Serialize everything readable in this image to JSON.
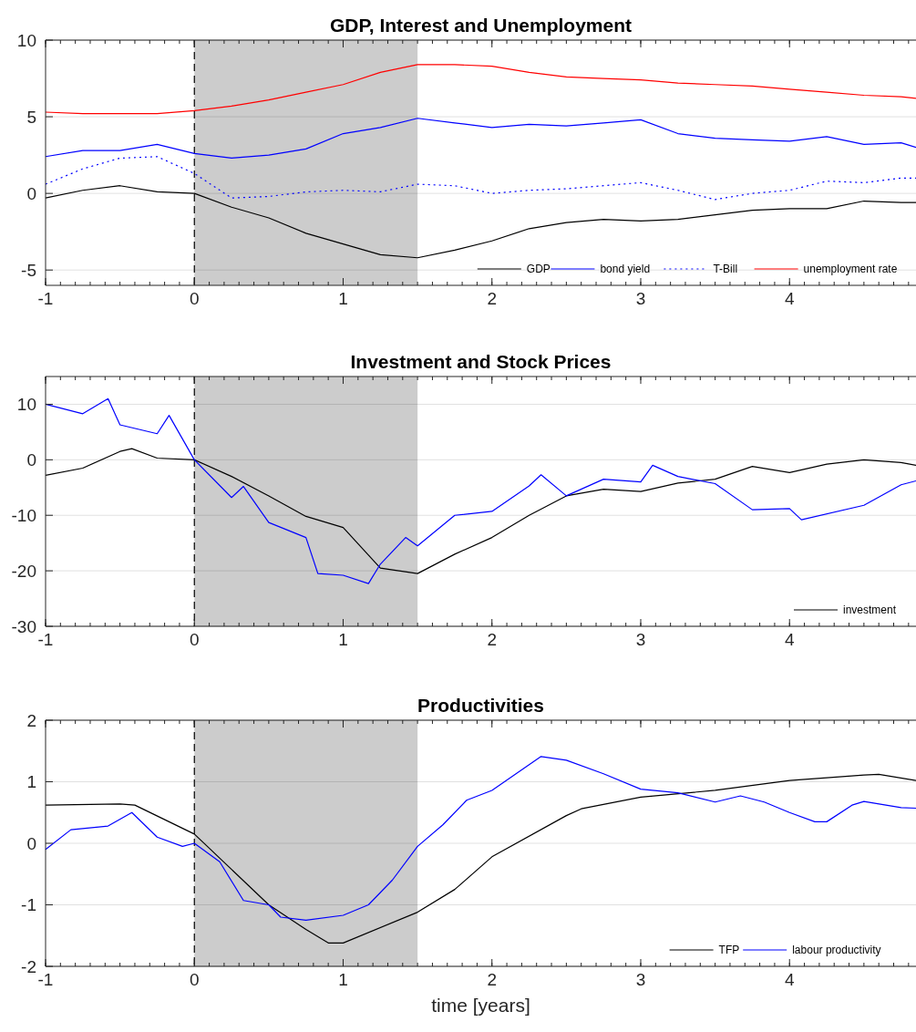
{
  "chart_data": [
    {
      "type": "line",
      "title": "GDP, Interest and Unemployment",
      "xlim": [
        -1,
        4.85
      ],
      "xticks": [
        -1,
        0,
        1,
        2,
        3,
        4
      ],
      "ylim": [
        -6,
        10
      ],
      "yticks": [
        -5,
        0,
        5,
        10
      ],
      "grid": "y",
      "legend": "bottom right",
      "x": [
        -1,
        -0.75,
        -0.5,
        -0.25,
        0,
        0.25,
        0.5,
        0.75,
        1,
        1.25,
        1.5,
        1.75,
        2,
        2.25,
        2.5,
        2.75,
        3,
        3.25,
        3.5,
        3.75,
        4,
        4.25,
        4.5,
        4.75,
        4.85
      ],
      "bands": [
        {
          "axis": "x",
          "from": 0,
          "to": 1.5,
          "color": "#cccccc"
        }
      ],
      "ref_lines": [
        {
          "axis": "x",
          "value": 0,
          "color": "#000000",
          "line_style": "dashed"
        }
      ],
      "series": [
        {
          "name": "GDP",
          "color": "#000000",
          "values": [
            -0.3,
            0.2,
            0.5,
            0.1,
            0.0,
            -0.9,
            -1.6,
            -2.6,
            -3.3,
            -4.0,
            -4.2,
            -3.7,
            -3.1,
            -2.3,
            -1.9,
            -1.7,
            -1.8,
            -1.7,
            -1.4,
            -1.1,
            -1.0,
            -1.0,
            -0.5,
            -0.6,
            -0.6
          ]
        },
        {
          "name": "bond yield",
          "color": "#0000ff",
          "values": [
            2.4,
            2.8,
            2.8,
            3.2,
            2.6,
            2.3,
            2.5,
            2.9,
            3.9,
            4.3,
            4.9,
            4.6,
            4.3,
            4.5,
            4.4,
            4.6,
            4.8,
            3.9,
            3.6,
            3.5,
            3.4,
            3.7,
            3.2,
            3.3,
            3.0
          ]
        },
        {
          "name": "T-Bill",
          "color": "#0000ff",
          "line_style": "dotted",
          "values": [
            0.6,
            1.6,
            2.3,
            2.4,
            1.3,
            -0.3,
            -0.2,
            0.1,
            0.2,
            0.1,
            0.6,
            0.5,
            0.0,
            0.2,
            0.3,
            0.5,
            0.7,
            0.2,
            -0.4,
            0.0,
            0.2,
            0.8,
            0.7,
            1.0,
            1.0
          ]
        },
        {
          "name": "unemployment rate",
          "color": "#ff0000",
          "values": [
            5.3,
            5.2,
            5.2,
            5.2,
            5.4,
            5.7,
            6.1,
            6.6,
            7.1,
            7.9,
            8.4,
            8.4,
            8.3,
            7.9,
            7.6,
            7.5,
            7.4,
            7.2,
            7.1,
            7.0,
            6.8,
            6.6,
            6.4,
            6.3,
            6.2
          ]
        }
      ]
    },
    {
      "type": "line",
      "title": "Investment and Stock Prices",
      "xlim": [
        -1,
        4.85
      ],
      "xticks": [
        -1,
        0,
        1,
        2,
        3,
        4
      ],
      "ylim": [
        -30,
        15
      ],
      "yticks": [
        -30,
        -20,
        -10,
        0,
        10
      ],
      "grid": "y",
      "legend": "bottom right",
      "bands": [
        {
          "axis": "x",
          "from": 0,
          "to": 1.5,
          "color": "#cccccc"
        }
      ],
      "ref_lines": [
        {
          "axis": "x",
          "value": 0,
          "color": "#000000",
          "line_style": "dashed"
        }
      ],
      "series": [
        {
          "name": "investment",
          "color": "#000000",
          "x": [
            -1,
            -0.75,
            -0.5,
            -0.42,
            -0.25,
            0,
            0.25,
            0.5,
            0.75,
            1,
            1.25,
            1.5,
            1.75,
            2,
            2.25,
            2.5,
            2.75,
            3,
            3.25,
            3.5,
            3.75,
            4,
            4.25,
            4.5,
            4.75,
            4.85
          ],
          "values": [
            -2.8,
            -1.5,
            1.5,
            2.0,
            0.3,
            0,
            -3,
            -6.5,
            -10.2,
            -12.2,
            -19.5,
            -20.5,
            -17,
            -14,
            -10,
            -6.5,
            -5.3,
            -5.7,
            -4.2,
            -3.5,
            -1.2,
            -2.3,
            -0.8,
            0,
            -0.5,
            -1.0
          ]
        },
        {
          "color": "#0000ff",
          "x": [
            -1,
            -0.75,
            -0.58,
            -0.5,
            -0.25,
            -0.17,
            0,
            0.25,
            0.33,
            0.5,
            0.75,
            0.83,
            1,
            1.17,
            1.25,
            1.42,
            1.5,
            1.75,
            2,
            2.25,
            2.33,
            2.5,
            2.75,
            3,
            3.08,
            3.25,
            3.5,
            3.75,
            4,
            4.08,
            4.5,
            4.75,
            4.85
          ],
          "values": [
            10,
            8.3,
            11,
            6.3,
            4.7,
            8,
            0,
            -6.8,
            -4.8,
            -11.3,
            -14,
            -20.5,
            -20.8,
            -22.3,
            -18.8,
            -14,
            -15.5,
            -10,
            -9.3,
            -4.7,
            -2.7,
            -6.5,
            -3.5,
            -4,
            -1,
            -3,
            -4.3,
            -9,
            -8.8,
            -10.8,
            -8.2,
            -4.5,
            -3.8
          ]
        }
      ]
    },
    {
      "type": "line",
      "title": "Productivities",
      "xlabel": "time [years]",
      "xlim": [
        -1,
        4.85
      ],
      "xticks": [
        -1,
        0,
        1,
        2,
        3,
        4
      ],
      "ylim": [
        -2,
        2
      ],
      "yticks": [
        -2,
        -1,
        0,
        1,
        2
      ],
      "grid": "y",
      "legend": "bottom right",
      "bands": [
        {
          "axis": "x",
          "from": 0,
          "to": 1.5,
          "color": "#cccccc"
        }
      ],
      "ref_lines": [
        {
          "axis": "x",
          "value": 0,
          "color": "#000000",
          "line_style": "dashed"
        }
      ],
      "series": [
        {
          "name": "TFP",
          "color": "#000000",
          "x": [
            -1,
            -0.5,
            -0.4,
            0,
            0.5,
            0.75,
            0.9,
            1,
            1.5,
            1.75,
            2,
            2.5,
            2.6,
            3,
            3.5,
            4,
            4.5,
            4.6,
            4.85
          ],
          "values": [
            0.62,
            0.64,
            0.62,
            0.15,
            -1.0,
            -1.4,
            -1.62,
            -1.62,
            -1.12,
            -0.75,
            -0.22,
            0.45,
            0.56,
            0.75,
            0.86,
            1.02,
            1.11,
            1.12,
            1.02
          ]
        },
        {
          "name": "labour productivity",
          "color": "#0000ff",
          "x": [
            -1,
            -0.83,
            -0.58,
            -0.42,
            -0.25,
            -0.08,
            0,
            0.17,
            0.33,
            0.5,
            0.58,
            0.75,
            1,
            1.17,
            1.33,
            1.5,
            1.67,
            1.83,
            2,
            2.33,
            2.5,
            2.75,
            3,
            3.25,
            3.5,
            3.67,
            3.83,
            4,
            4.17,
            4.25,
            4.42,
            4.5,
            4.75,
            4.85
          ],
          "values": [
            -0.1,
            0.22,
            0.28,
            0.5,
            0.1,
            -0.05,
            0,
            -0.3,
            -0.93,
            -1.0,
            -1.2,
            -1.25,
            -1.17,
            -1.0,
            -0.6,
            -0.05,
            0.3,
            0.7,
            0.86,
            1.41,
            1.35,
            1.13,
            0.88,
            0.82,
            0.67,
            0.77,
            0.67,
            0.5,
            0.35,
            0.35,
            0.62,
            0.68,
            0.58,
            0.57
          ]
        }
      ]
    }
  ]
}
